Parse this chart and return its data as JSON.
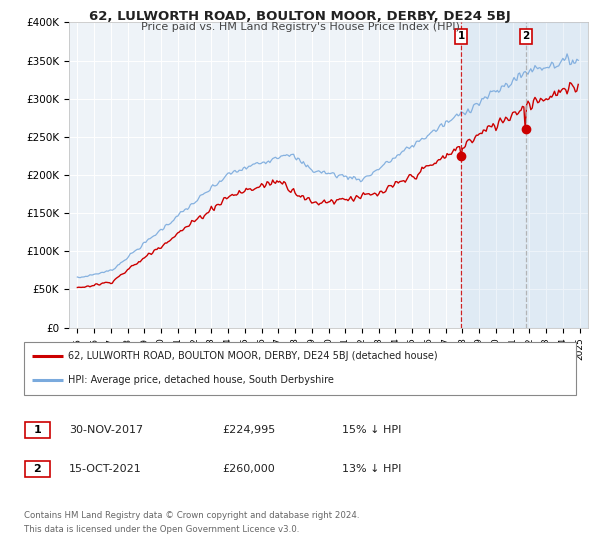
{
  "title": "62, LULWORTH ROAD, BOULTON MOOR, DERBY, DE24 5BJ",
  "subtitle": "Price paid vs. HM Land Registry's House Price Index (HPI)",
  "legend_line1": "62, LULWORTH ROAD, BOULTON MOOR, DERBY, DE24 5BJ (detached house)",
  "legend_line2": "HPI: Average price, detached house, South Derbyshire",
  "marker1_date": "30-NOV-2017",
  "marker1_price": "£224,995",
  "marker1_hpi": "15% ↓ HPI",
  "marker2_date": "15-OCT-2021",
  "marker2_price": "£260,000",
  "marker2_hpi": "13% ↓ HPI",
  "footnote1": "Contains HM Land Registry data © Crown copyright and database right 2024.",
  "footnote2": "This data is licensed under the Open Government Licence v3.0.",
  "red_color": "#cc0000",
  "blue_color": "#7aaadd",
  "bg_color": "#eef3f8",
  "marker1_x": 2017.92,
  "marker1_y": 224995,
  "marker2_x": 2021.79,
  "marker2_y": 260000,
  "ylim_max": 400000,
  "xlim_min": 1994.5,
  "xlim_max": 2025.5,
  "yticks": [
    0,
    50000,
    100000,
    150000,
    200000,
    250000,
    300000,
    350000,
    400000
  ],
  "ytick_labels": [
    "£0",
    "£50K",
    "£100K",
    "£150K",
    "£200K",
    "£250K",
    "£300K",
    "£350K",
    "£400K"
  ]
}
